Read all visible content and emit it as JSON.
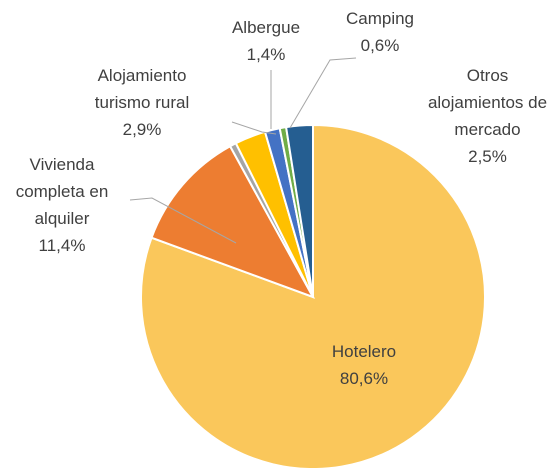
{
  "chart_data": {
    "type": "pie",
    "categories": [
      "Hotelero",
      "Vivienda completa en alquiler",
      null,
      "Alojamiento turismo rural",
      "Albergue",
      "Camping",
      "Otros alojamientos de mercado"
    ],
    "values": [
      80.6,
      11.4,
      0.6,
      2.9,
      1.4,
      0.6,
      2.5
    ],
    "value_labels": [
      "80,6%",
      "11,4%",
      null,
      "2,9%",
      "1,4%",
      "0,6%",
      "2,5%"
    ],
    "colors": [
      "#FAC75B",
      "#ED7D31",
      "#A5A5A5",
      "#FFC000",
      "#4472C4",
      "#70AD47",
      "#255E91"
    ]
  }
}
